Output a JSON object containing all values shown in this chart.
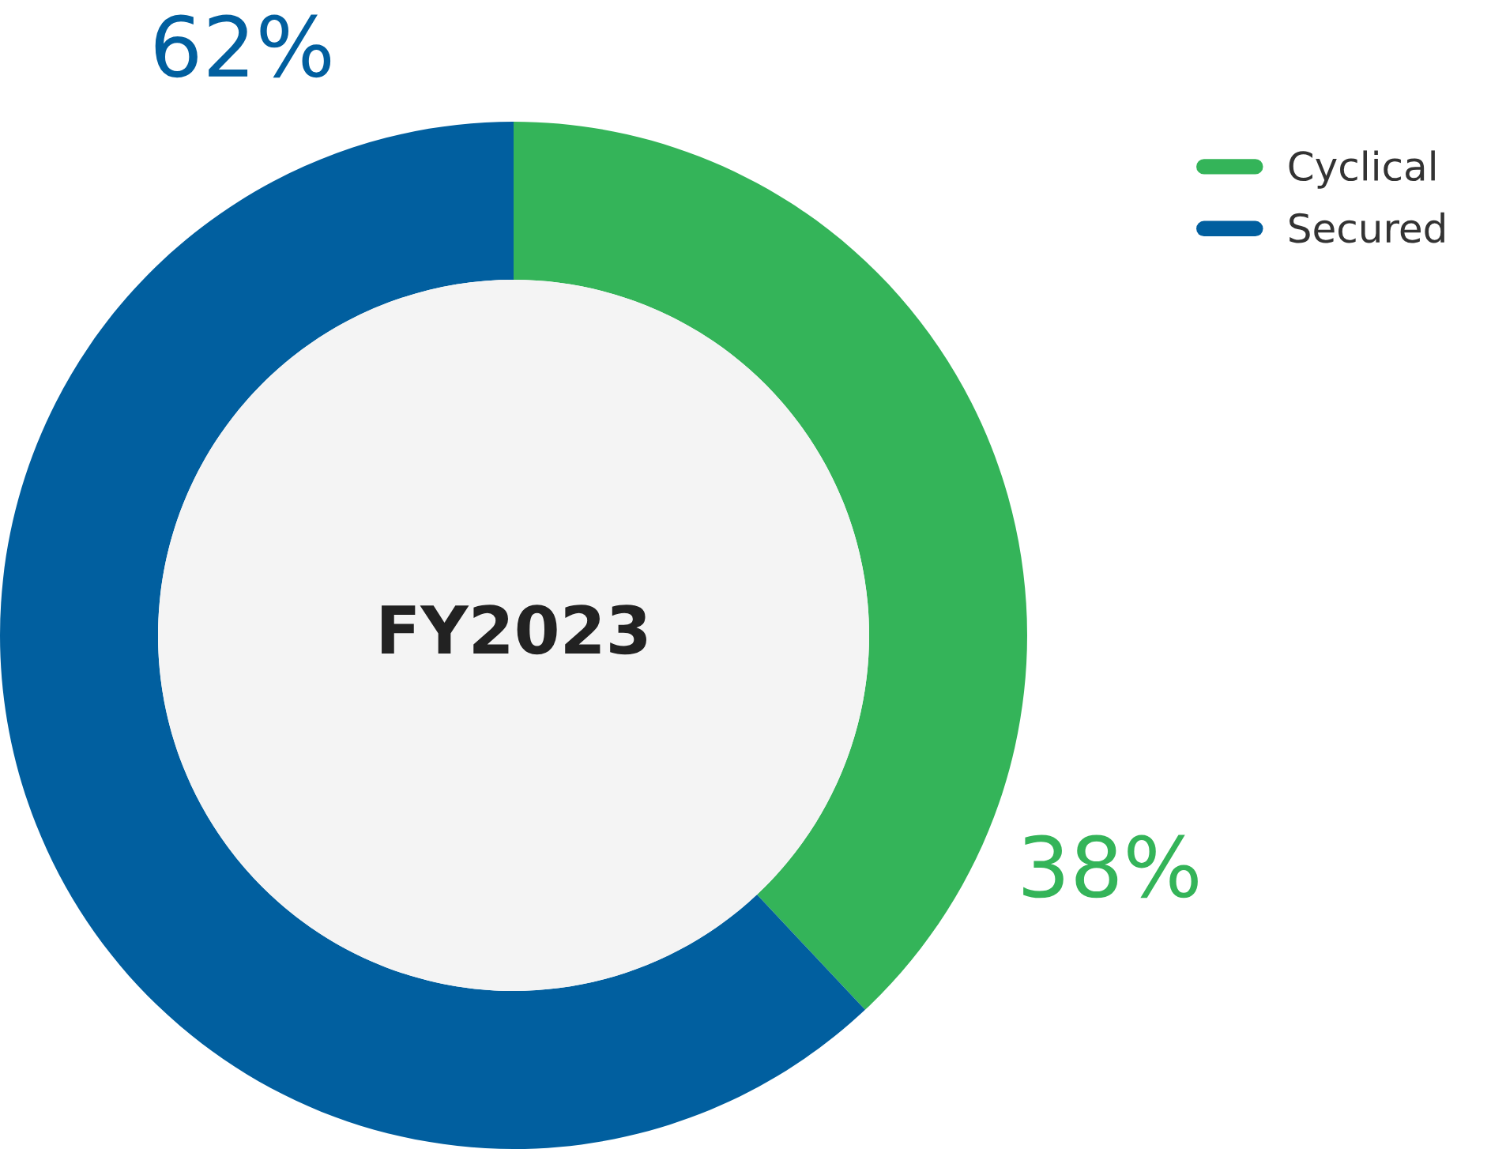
{
  "chart_data": {
    "type": "donut",
    "title": "FY2023",
    "categories": [
      "Cyclical",
      "Secured"
    ],
    "values": [
      38,
      62
    ],
    "colors": [
      "#34b459",
      "#015f9f"
    ],
    "value_labels": [
      "38%",
      "62%"
    ],
    "legend": "top right"
  }
}
